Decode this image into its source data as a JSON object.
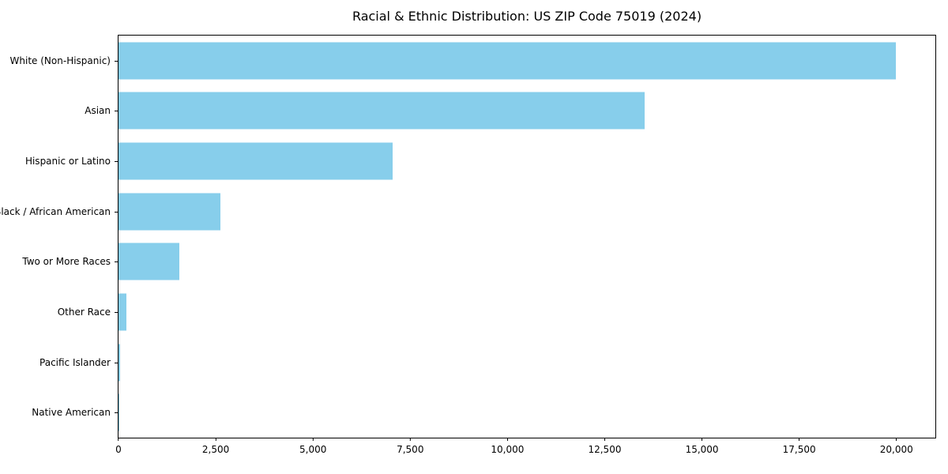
{
  "title": "Racial & Ethnic Distribution: US ZIP Code 75019 (2024)",
  "colors": {
    "bar": "#87CEEB",
    "axis": "#000000",
    "background": "#FFFFFF",
    "text": "#000000"
  },
  "chart_data": {
    "type": "bar",
    "orientation": "horizontal",
    "title": "Racial & Ethnic Distribution: US ZIP Code 75019 (2024)",
    "xlabel": "",
    "ylabel": "",
    "categories": [
      "White (Non-Hispanic)",
      "Asian",
      "Hispanic or Latino",
      "Black / African American",
      "Two or More Races",
      "Other Race",
      "Pacific Islander",
      "Native American"
    ],
    "values": [
      19980,
      13520,
      7040,
      2610,
      1560,
      200,
      40,
      25
    ],
    "xlim": [
      0,
      21000
    ],
    "x_ticks": [
      0,
      2500,
      5000,
      7500,
      10000,
      12500,
      15000,
      17500,
      20000
    ],
    "x_tick_labels": [
      "0",
      "2,500",
      "5,000",
      "7,500",
      "10,000",
      "12,500",
      "15,000",
      "17,500",
      "20,000"
    ],
    "bar_color": "#87CEEB",
    "grid": false,
    "legend": "none"
  }
}
